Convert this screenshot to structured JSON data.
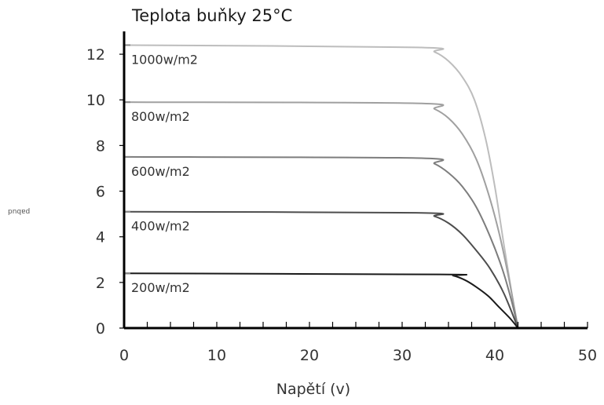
{
  "chart_data": {
    "type": "line",
    "title": "Teplota buňky 25°C",
    "xlabel": "Napětí (v)",
    "ylabel": "pnqɐd",
    "xlim": [
      0,
      50
    ],
    "ylim": [
      0,
      13
    ],
    "xticks": [
      0,
      10,
      20,
      30,
      40,
      50
    ],
    "yticks": [
      0,
      2,
      4,
      6,
      8,
      10,
      12
    ],
    "grid": false,
    "series": [
      {
        "name": "1000w/m2",
        "color": "#bdbdbd",
        "points": [
          [
            0,
            12.4
          ],
          [
            31.5,
            12.3
          ],
          [
            33.5,
            12.1
          ],
          [
            35,
            11.7
          ],
          [
            36.5,
            11.0
          ],
          [
            37.8,
            10.0
          ],
          [
            39,
            8.3
          ],
          [
            40,
            6.2
          ],
          [
            41,
            3.6
          ],
          [
            41.8,
            1.6
          ],
          [
            42.5,
            0
          ]
        ]
      },
      {
        "name": "800w/m2",
        "color": "#a0a0a0",
        "points": [
          [
            0,
            9.9
          ],
          [
            31.5,
            9.85
          ],
          [
            33.5,
            9.6
          ],
          [
            35,
            9.2
          ],
          [
            36.5,
            8.5
          ],
          [
            38,
            7.4
          ],
          [
            39.3,
            5.9
          ],
          [
            40.5,
            4.1
          ],
          [
            41.5,
            2.2
          ],
          [
            42.5,
            0
          ]
        ]
      },
      {
        "name": "600w/m2",
        "color": "#7d7d7d",
        "points": [
          [
            0,
            7.5
          ],
          [
            31.5,
            7.45
          ],
          [
            33.5,
            7.2
          ],
          [
            35,
            6.8
          ],
          [
            36.5,
            6.2
          ],
          [
            38,
            5.3
          ],
          [
            39.5,
            4.0
          ],
          [
            40.8,
            2.6
          ],
          [
            41.8,
            1.2
          ],
          [
            42.5,
            0
          ]
        ]
      },
      {
        "name": "400w/m2",
        "color": "#4d4d4d",
        "points": [
          [
            0,
            5.1
          ],
          [
            31.5,
            5.05
          ],
          [
            33.5,
            4.9
          ],
          [
            35,
            4.6
          ],
          [
            36.5,
            4.1
          ],
          [
            38,
            3.4
          ],
          [
            39.5,
            2.6
          ],
          [
            41,
            1.5
          ],
          [
            42.5,
            0
          ]
        ]
      },
      {
        "name": "200w/m2",
        "color": "#1a1a1a",
        "points": [
          [
            0,
            2.4
          ],
          [
            34,
            2.35
          ],
          [
            35.5,
            2.3
          ],
          [
            36.8,
            2.1
          ],
          [
            38,
            1.8
          ],
          [
            39.3,
            1.4
          ],
          [
            40.5,
            0.9
          ],
          [
            41.7,
            0.4
          ],
          [
            42.5,
            0
          ]
        ]
      }
    ]
  }
}
